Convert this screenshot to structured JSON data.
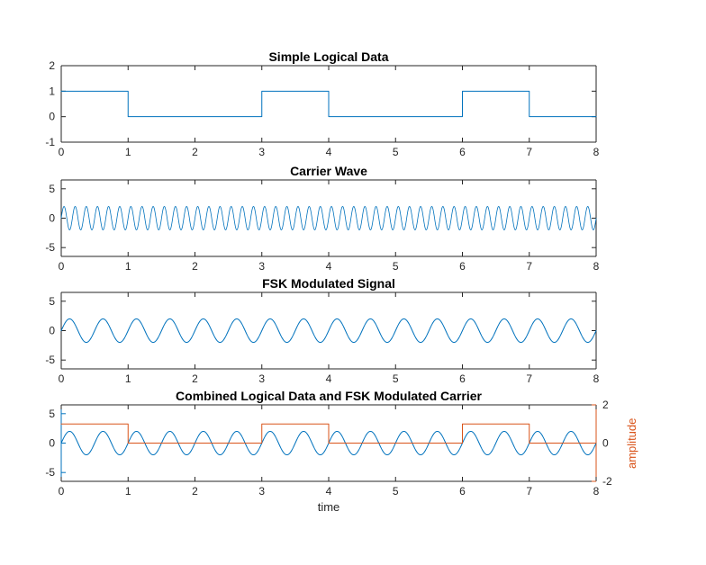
{
  "figure": {
    "background": "#ffffff"
  },
  "palette": {
    "blue": "#0072BD",
    "orange": "#D95319",
    "axis": "#262626"
  },
  "chart_data": [
    {
      "type": "line",
      "title": "Simple Logical Data",
      "xlim": [
        0,
        8
      ],
      "ylim": [
        -1,
        2
      ],
      "xticks": [
        0,
        1,
        2,
        3,
        4,
        5,
        6,
        7,
        8
      ],
      "yticks": [
        2,
        1,
        0,
        -1
      ],
      "grid": false,
      "legend": null,
      "series": [
        {
          "name": "logical-data",
          "kind": "square",
          "bits": [
            1,
            0,
            0,
            1,
            0,
            0,
            1,
            0
          ],
          "bit_duration": 1,
          "color": "#0072BD"
        }
      ]
    },
    {
      "type": "line",
      "title": "Carrier Wave",
      "xlim": [
        0,
        8
      ],
      "ylim": [
        -6.5,
        6.5
      ],
      "xticks": [
        0,
        1,
        2,
        3,
        4,
        5,
        6,
        7,
        8
      ],
      "yticks": [
        5,
        0,
        -5
      ],
      "grid": false,
      "legend": null,
      "series": [
        {
          "name": "carrier",
          "kind": "sine",
          "amplitude": 2,
          "frequency": 6,
          "color": "#0072BD"
        }
      ]
    },
    {
      "type": "line",
      "title": "FSK Modulated Signal",
      "xlim": [
        0,
        8
      ],
      "ylim": [
        -6.5,
        6.5
      ],
      "xticks": [
        0,
        1,
        2,
        3,
        4,
        5,
        6,
        7,
        8
      ],
      "yticks": [
        5,
        0,
        -5
      ],
      "grid": false,
      "legend": null,
      "series": [
        {
          "name": "fsk-signal",
          "kind": "sine",
          "amplitude": 2,
          "frequency": 2,
          "color": "#0072BD"
        }
      ]
    },
    {
      "type": "line",
      "title": "Combined Logical Data and FSK Modulated Carrier",
      "xlabel": "time",
      "xlim": [
        0,
        8
      ],
      "xticks": [
        0,
        1,
        2,
        3,
        4,
        5,
        6,
        7,
        8
      ],
      "grid": false,
      "legend": null,
      "left": {
        "ylim": [
          -6.5,
          6.5
        ],
        "yticks": [
          5,
          0,
          -5
        ],
        "color": "#0072BD"
      },
      "right": {
        "ylim": [
          -2,
          2
        ],
        "yticks": [
          2,
          0,
          -2
        ],
        "color": "#D95319",
        "ylabel": "amplitude"
      },
      "series": [
        {
          "name": "fsk-signal",
          "kind": "sine",
          "amplitude": 2,
          "frequency": 2,
          "color": "#0072BD",
          "axis": "left"
        },
        {
          "name": "logical-data",
          "kind": "square",
          "bits": [
            1,
            0,
            0,
            1,
            0,
            0,
            1,
            0
          ],
          "bit_duration": 1,
          "color": "#D95319",
          "axis": "right"
        }
      ]
    }
  ]
}
